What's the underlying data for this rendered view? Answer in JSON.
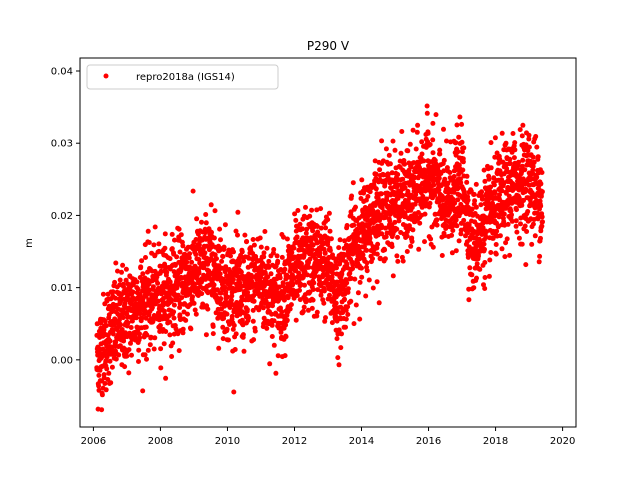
{
  "chart_data": {
    "type": "scatter",
    "title": "P290 V",
    "xlabel": "",
    "ylabel": "m",
    "xlim": [
      2005.6,
      2020.4
    ],
    "ylim": [
      -0.0093,
      0.0418
    ],
    "xticks": [
      2006,
      2008,
      2010,
      2012,
      2014,
      2016,
      2018,
      2020
    ],
    "yticks": [
      0.0,
      0.01,
      0.02,
      0.03,
      0.04
    ],
    "ytick_labels": [
      "0.00",
      "0.01",
      "0.02",
      "0.03",
      "0.04"
    ],
    "grid": false,
    "legend_placement": "top-left",
    "color": "#ff0000",
    "series": [
      {
        "name": "repro2018a (IGS14)",
        "x_range": [
          2006.1,
          2019.4
        ],
        "trend": [
          [
            2006.1,
            0.0
          ],
          [
            2006.5,
            0.004
          ],
          [
            2007.0,
            0.006
          ],
          [
            2007.5,
            0.008
          ],
          [
            2008.0,
            0.009
          ],
          [
            2008.5,
            0.01
          ],
          [
            2009.0,
            0.012
          ],
          [
            2009.5,
            0.013
          ],
          [
            2010.0,
            0.01
          ],
          [
            2010.5,
            0.009
          ],
          [
            2011.0,
            0.011
          ],
          [
            2011.5,
            0.008
          ],
          [
            2012.0,
            0.012
          ],
          [
            2012.5,
            0.014
          ],
          [
            2013.0,
            0.013
          ],
          [
            2013.3,
            0.008
          ],
          [
            2013.7,
            0.015
          ],
          [
            2014.0,
            0.017
          ],
          [
            2014.5,
            0.021
          ],
          [
            2015.0,
            0.022
          ],
          [
            2015.5,
            0.022
          ],
          [
            2016.0,
            0.026
          ],
          [
            2016.5,
            0.021
          ],
          [
            2017.0,
            0.025
          ],
          [
            2017.3,
            0.016
          ],
          [
            2017.7,
            0.019
          ],
          [
            2018.0,
            0.021
          ],
          [
            2018.5,
            0.024
          ],
          [
            2019.0,
            0.025
          ],
          [
            2019.4,
            0.022
          ]
        ],
        "spread": 0.0035,
        "y_min": -0.0069,
        "y_max": 0.0398
      }
    ]
  }
}
